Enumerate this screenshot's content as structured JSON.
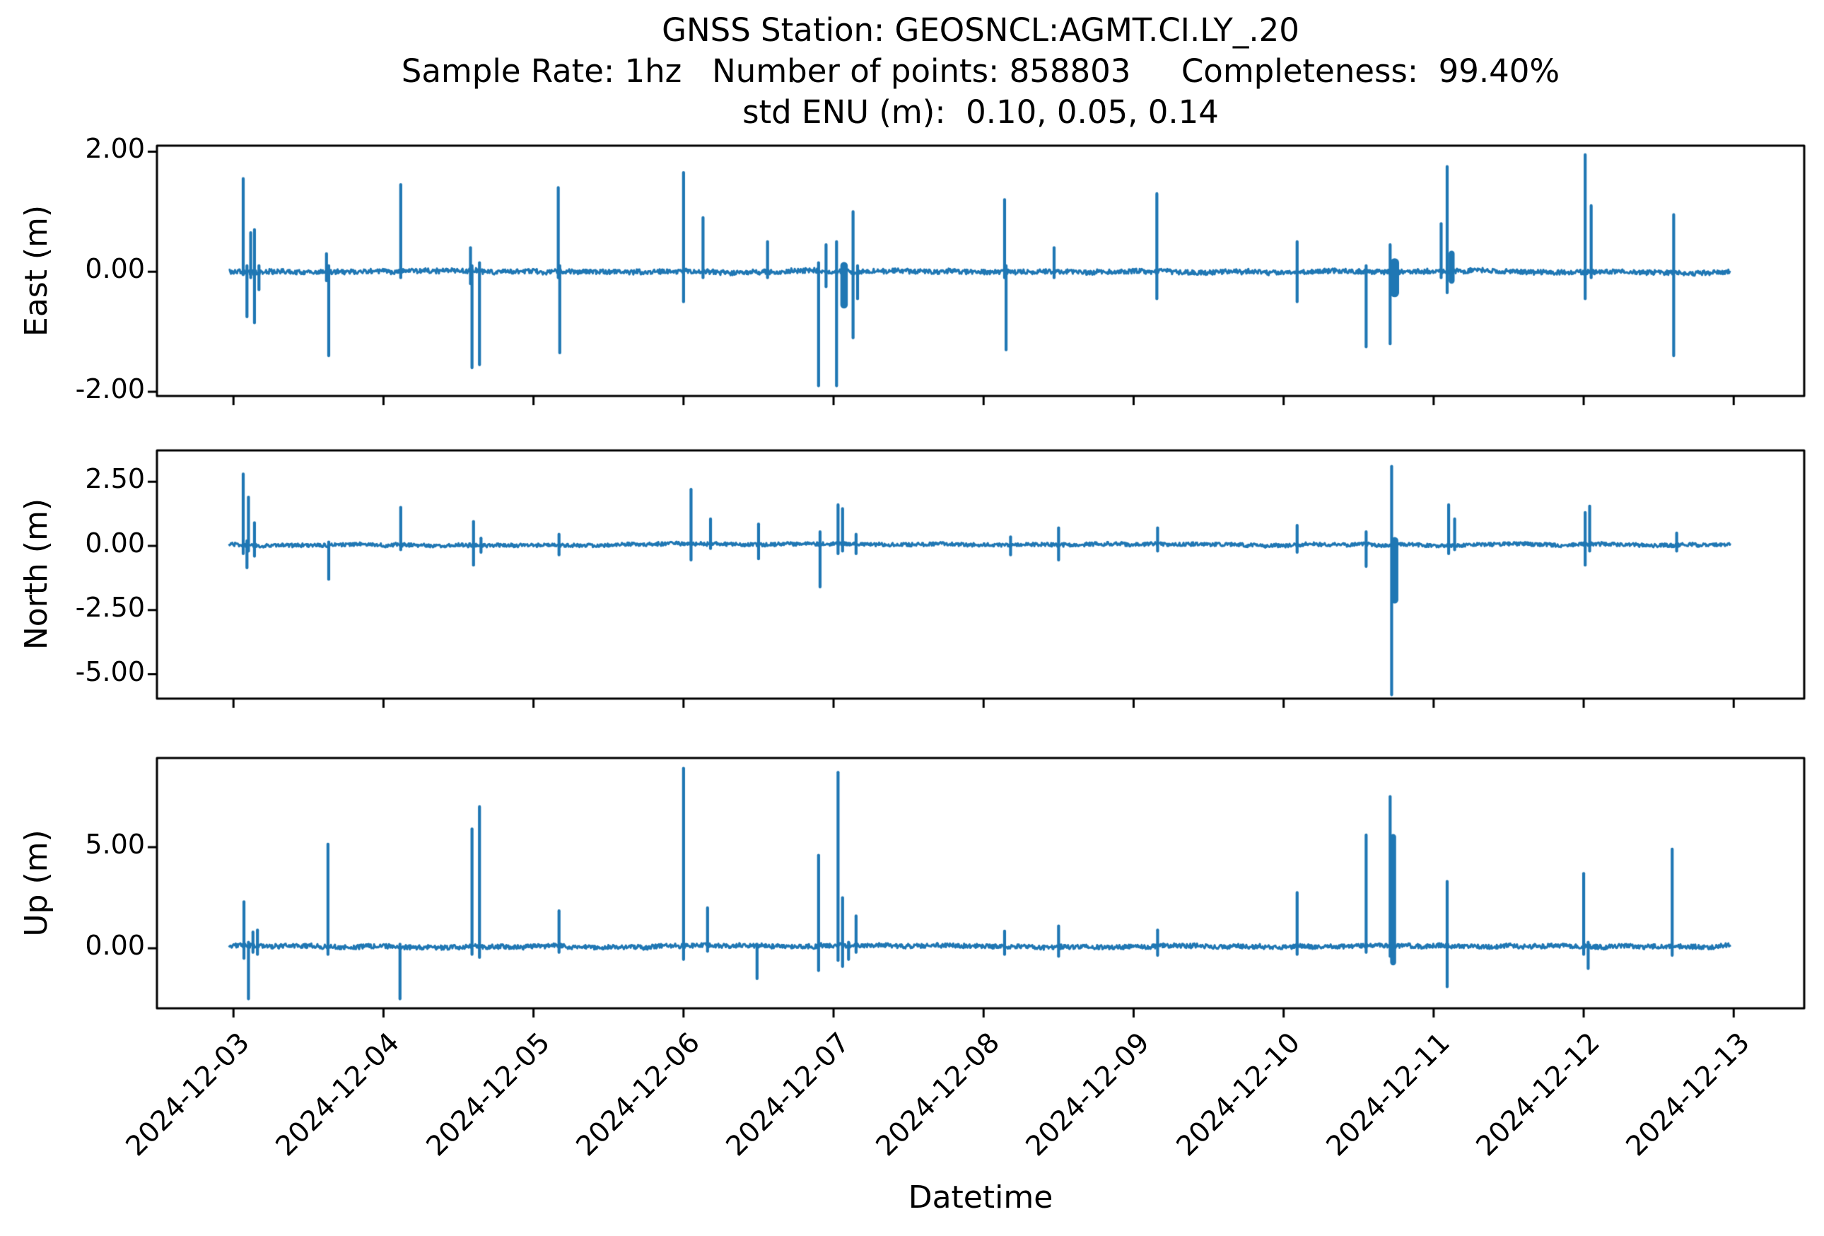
{
  "chart_data": {
    "type": "line",
    "title_lines": [
      "GNSS Station: GEOSNCL:AGMT.CI.LY_.20",
      "Sample Rate: 1hz   Number of points: 858803     Completeness:  99.40%",
      "std ENU (m):  0.10, 0.05, 0.14"
    ],
    "station": "GEOSNCL:AGMT.CI.LY_.20",
    "sample_rate": "1hz",
    "number_of_points": "858803",
    "completeness": "99.40%",
    "std_enu_m": [
      0.1,
      0.05,
      0.14
    ],
    "xlabel": "Datetime",
    "line_color": "#1f77b4",
    "axis_color": "#000000",
    "background_color": "#ffffff",
    "grid": false,
    "legend": false,
    "x_tick_labels": [
      "2024-12-03",
      "2024-12-04",
      "2024-12-05",
      "2024-12-06",
      "2024-12-07",
      "2024-12-08",
      "2024-12-09",
      "2024-12-10",
      "2024-12-11",
      "2024-12-12",
      "2024-12-13"
    ],
    "x_unit_note": "t = days since 2024-12-03 00:00",
    "xlim": [
      -0.51,
      10.47
    ],
    "data_t_range": [
      -0.03,
      9.98
    ],
    "panels": [
      {
        "name": "east",
        "ylabel": "East (m)",
        "ylim": [
          -2.07,
          2.1
        ],
        "yticks": [
          2.0,
          0.0,
          -2.0
        ],
        "yticklabels": [
          "2.00",
          "0.00",
          "-2.00"
        ],
        "baseline": 0.0,
        "noise_amp": 0.04,
        "spikes": [
          [
            0.065,
            -0.05,
            1.55,
            1
          ],
          [
            0.09,
            -0.75,
            0.1,
            1
          ],
          [
            0.115,
            -0.1,
            0.65,
            1
          ],
          [
            0.14,
            -0.85,
            0.7,
            1
          ],
          [
            0.17,
            -0.3,
            0.1,
            1
          ],
          [
            0.62,
            -0.15,
            0.3,
            1
          ],
          [
            0.635,
            -1.4,
            0.1,
            1
          ],
          [
            1.115,
            -0.1,
            1.45,
            1
          ],
          [
            1.58,
            -0.2,
            0.4,
            1
          ],
          [
            1.59,
            -1.6,
            0.1,
            1
          ],
          [
            1.64,
            -1.55,
            0.15,
            1
          ],
          [
            2.165,
            -0.1,
            1.4,
            1
          ],
          [
            2.175,
            -1.35,
            0.1,
            1
          ],
          [
            3.0,
            -0.5,
            1.65,
            1
          ],
          [
            3.13,
            -0.1,
            0.9,
            1
          ],
          [
            3.56,
            -0.1,
            0.5,
            1
          ],
          [
            3.9,
            -1.9,
            0.15,
            1
          ],
          [
            3.95,
            -0.25,
            0.45,
            1
          ],
          [
            4.02,
            -1.9,
            0.5,
            1
          ],
          [
            4.07,
            -0.55,
            0.1,
            2.5
          ],
          [
            4.13,
            -1.1,
            1.0,
            1
          ],
          [
            4.16,
            -0.45,
            0.1,
            1
          ],
          [
            5.14,
            -0.1,
            1.2,
            1
          ],
          [
            5.15,
            -1.3,
            0.1,
            1
          ],
          [
            5.47,
            -0.1,
            0.4,
            1
          ],
          [
            6.155,
            -0.45,
            1.3,
            1
          ],
          [
            7.09,
            -0.5,
            0.5,
            1
          ],
          [
            7.55,
            -1.25,
            0.1,
            1
          ],
          [
            7.71,
            -1.2,
            0.45,
            1
          ],
          [
            7.74,
            -0.35,
            0.15,
            3
          ],
          [
            8.05,
            -0.1,
            0.8,
            1
          ],
          [
            8.09,
            -0.35,
            1.75,
            1
          ],
          [
            8.12,
            -0.15,
            0.3,
            2
          ],
          [
            9.01,
            -0.45,
            1.95,
            1
          ],
          [
            9.05,
            -0.1,
            1.1,
            1
          ],
          [
            9.6,
            -1.4,
            0.95,
            1
          ]
        ]
      },
      {
        "name": "north",
        "ylabel": "North (m)",
        "ylim": [
          -5.95,
          3.72
        ],
        "yticks": [
          2.5,
          0.0,
          -2.5,
          -5.0
        ],
        "yticklabels": [
          "2.50",
          "0.00",
          "-2.50",
          "-5.00"
        ],
        "baseline": 0.05,
        "noise_amp": 0.07,
        "spikes": [
          [
            0.065,
            -0.3,
            2.8,
            1
          ],
          [
            0.09,
            -0.85,
            0.2,
            1
          ],
          [
            0.1,
            -0.2,
            1.9,
            1
          ],
          [
            0.14,
            -0.4,
            0.9,
            1
          ],
          [
            0.635,
            -1.3,
            0.15,
            1
          ],
          [
            1.115,
            -0.15,
            1.5,
            1
          ],
          [
            1.6,
            -0.75,
            0.95,
            1
          ],
          [
            1.65,
            -0.25,
            0.3,
            1
          ],
          [
            2.17,
            -0.35,
            0.45,
            1
          ],
          [
            3.05,
            -0.55,
            2.2,
            1
          ],
          [
            3.18,
            -0.1,
            1.05,
            1
          ],
          [
            3.5,
            -0.5,
            0.85,
            1
          ],
          [
            3.91,
            -1.6,
            0.55,
            1
          ],
          [
            4.03,
            -0.3,
            1.6,
            1
          ],
          [
            4.06,
            -0.2,
            1.45,
            1
          ],
          [
            4.15,
            -0.3,
            0.45,
            1
          ],
          [
            5.18,
            -0.35,
            0.35,
            1
          ],
          [
            5.5,
            -0.55,
            0.7,
            1
          ],
          [
            6.16,
            -0.2,
            0.7,
            1
          ],
          [
            7.09,
            -0.25,
            0.8,
            1
          ],
          [
            7.55,
            -0.8,
            0.55,
            1
          ],
          [
            7.72,
            -5.8,
            3.1,
            1
          ],
          [
            7.74,
            -2.1,
            0.2,
            2.5
          ],
          [
            8.1,
            -0.3,
            1.6,
            1
          ],
          [
            8.14,
            -0.15,
            1.05,
            1
          ],
          [
            9.01,
            -0.75,
            1.3,
            1
          ],
          [
            9.04,
            -0.2,
            1.55,
            1
          ],
          [
            9.62,
            -0.2,
            0.5,
            1
          ]
        ]
      },
      {
        "name": "up",
        "ylabel": "Up (m)",
        "ylim": [
          -2.97,
          9.41
        ],
        "yticks": [
          5.0,
          0.0
        ],
        "yticklabels": [
          "5.00",
          "0.00"
        ],
        "baseline": 0.1,
        "noise_amp": 0.11,
        "spikes": [
          [
            0.07,
            -0.5,
            2.3,
            1
          ],
          [
            0.1,
            -2.5,
            0.3,
            1
          ],
          [
            0.13,
            -0.2,
            0.8,
            1
          ],
          [
            0.16,
            -0.3,
            0.9,
            1
          ],
          [
            0.63,
            -0.3,
            5.15,
            1
          ],
          [
            1.11,
            -2.5,
            0.2,
            1
          ],
          [
            1.59,
            -0.3,
            5.9,
            1
          ],
          [
            1.64,
            -0.45,
            7.0,
            1
          ],
          [
            2.17,
            -0.2,
            1.85,
            1
          ],
          [
            3.0,
            -0.55,
            8.9,
            1
          ],
          [
            3.16,
            -0.15,
            2.0,
            1
          ],
          [
            3.49,
            -1.5,
            0.2,
            1
          ],
          [
            3.9,
            -1.1,
            4.6,
            1
          ],
          [
            4.03,
            -0.6,
            8.7,
            1
          ],
          [
            4.06,
            -0.9,
            2.5,
            1
          ],
          [
            4.1,
            -0.55,
            0.3,
            1
          ],
          [
            4.15,
            -0.2,
            1.6,
            1
          ],
          [
            5.14,
            -0.3,
            0.85,
            1
          ],
          [
            5.5,
            -0.4,
            1.1,
            1
          ],
          [
            6.16,
            -0.35,
            0.9,
            1
          ],
          [
            7.09,
            -0.3,
            2.75,
            1
          ],
          [
            7.55,
            -0.2,
            5.6,
            1
          ],
          [
            7.71,
            -0.4,
            7.5,
            1
          ],
          [
            7.73,
            -0.7,
            5.5,
            2
          ],
          [
            8.09,
            -1.9,
            3.3,
            1
          ],
          [
            9.0,
            -0.3,
            3.7,
            1
          ],
          [
            9.03,
            -1.0,
            0.3,
            1
          ],
          [
            9.59,
            -0.35,
            4.9,
            1
          ]
        ]
      }
    ]
  }
}
